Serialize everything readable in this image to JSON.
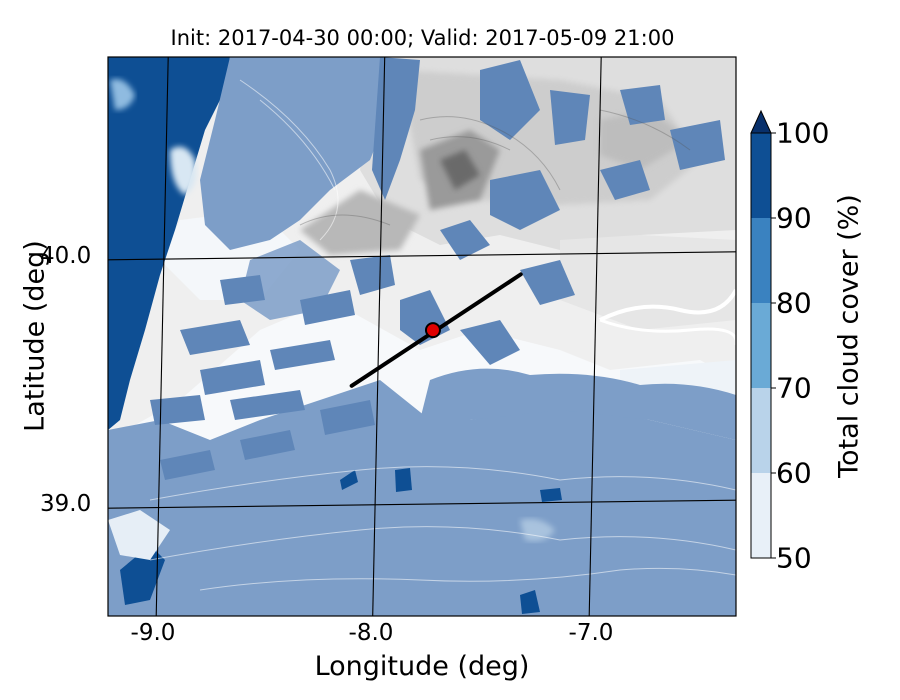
{
  "title": "Init: 2017-04-30 00:00; Valid: 2017-05-09 21:00",
  "axes": {
    "xlabel": "Longitude (deg)",
    "ylabel": "Latitude (deg)",
    "x_ticks": [
      "-9.0",
      "-8.0",
      "-7.0"
    ],
    "y_ticks": [
      "40.0",
      "39.0"
    ]
  },
  "colorbar": {
    "label": "Total cloud cover (%)",
    "ticks": [
      "50",
      "60",
      "70",
      "80",
      "90",
      "100"
    ],
    "levels": [
      50,
      60,
      70,
      80,
      90,
      100
    ],
    "colors": [
      "#e8f0f8",
      "#b9d3ea",
      "#6aaad6",
      "#3a82c0",
      "#0e4f94"
    ],
    "extend": "max",
    "extend_color": "#08306b"
  },
  "cross_section": {
    "start": [
      -8.12,
      39.48
    ],
    "end": [
      -7.35,
      39.92
    ],
    "center": [
      -7.75,
      39.7
    ],
    "line_color": "#000000",
    "marker_color": "#e00000"
  },
  "map": {
    "lon_range": [
      -9.25,
      -6.35
    ],
    "lat_range": [
      38.55,
      40.8
    ],
    "gridlines": {
      "lon": [
        -9.0,
        -8.0,
        -7.0
      ],
      "lat": [
        40.0,
        39.0
      ]
    },
    "terrain_colors": [
      "#f2f2f2",
      "#e4e4e4",
      "#d0d0d0",
      "#b5b5b5",
      "#8f8f8f"
    ]
  }
}
